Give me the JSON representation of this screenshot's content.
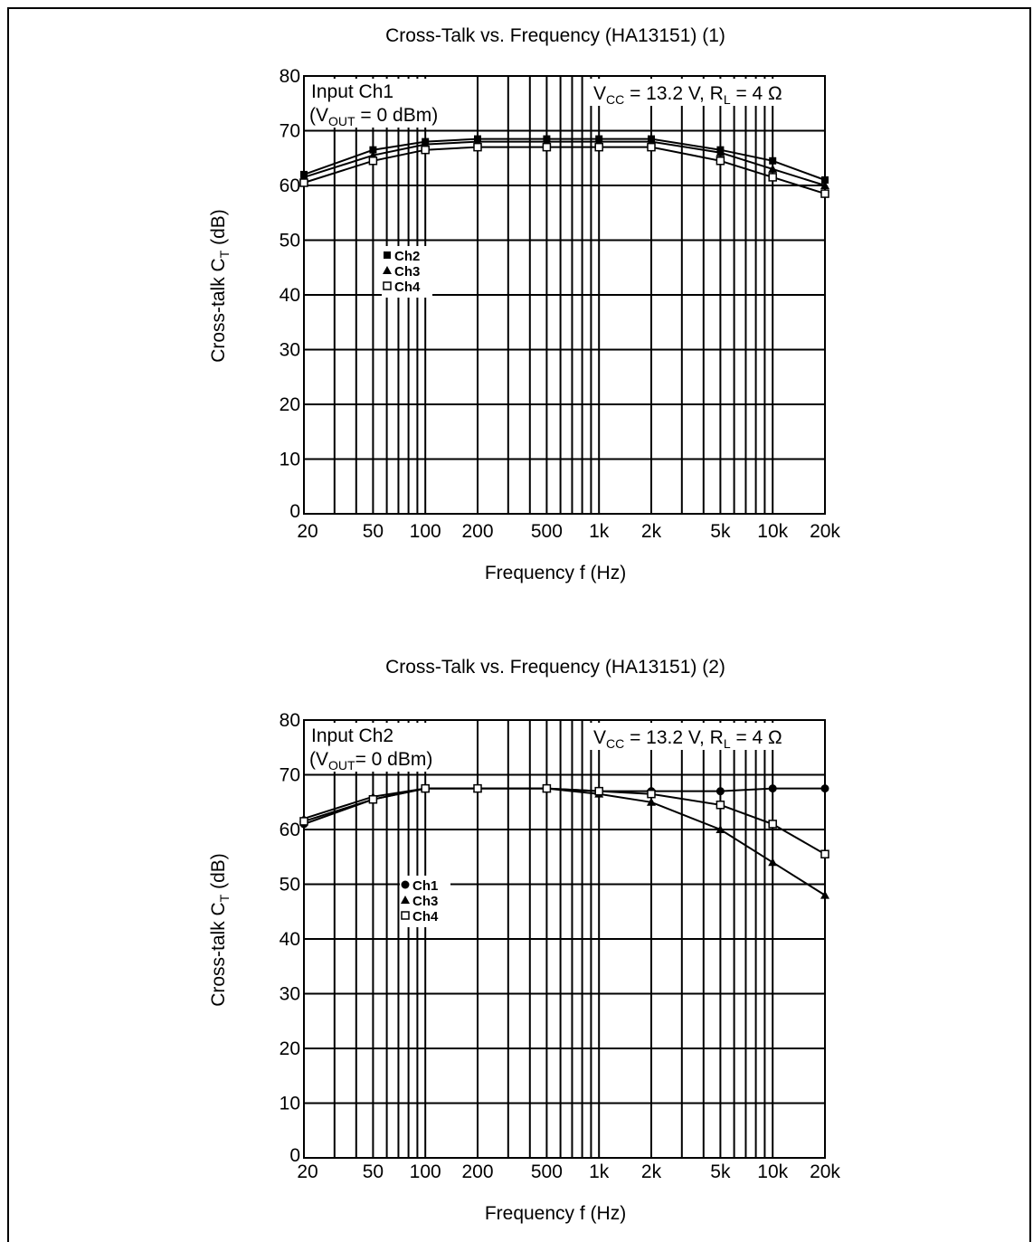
{
  "chart_data": [
    {
      "type": "line",
      "title": "Cross-Talk vs. Frequency (HA13151) (1)",
      "xlabel": "Frequency f (Hz)",
      "ylabel": "Cross-talk CT (dB)",
      "x_scale": "log",
      "xlim": [
        20,
        20000
      ],
      "ylim": [
        0,
        80
      ],
      "x_ticks": [
        20,
        50,
        100,
        200,
        500,
        1000,
        2000,
        5000,
        10000,
        20000
      ],
      "x_tick_labels": [
        "20",
        "50",
        "100",
        "200",
        "500",
        "1k",
        "2k",
        "5k",
        "10k",
        "20k"
      ],
      "y_ticks": [
        0,
        10,
        20,
        30,
        40,
        50,
        60,
        70,
        80
      ],
      "y_tick_labels": [
        "0",
        "10",
        "20",
        "30",
        "40",
        "50",
        "60",
        "70",
        "80"
      ],
      "grid": true,
      "annotations": {
        "input_line1": "Input Ch1",
        "input_line2": "(V",
        "input_sub": "OUT",
        "input_line2_rest": " = 0 dBm)",
        "cond_v": "V",
        "cond_v_sub": "CC",
        "cond_mid": " = 13.2 V, R",
        "cond_r_sub": "L",
        "cond_end": " = 4 Ω"
      },
      "legend_position": "left-middle",
      "x": [
        20,
        50,
        100,
        200,
        500,
        1000,
        2000,
        5000,
        10000,
        20000
      ],
      "series": [
        {
          "name": "Ch2",
          "marker": "filled-square",
          "values": [
            62,
            66.5,
            68,
            68.5,
            68.5,
            68.5,
            68.5,
            66.5,
            64.5,
            61
          ]
        },
        {
          "name": "Ch3",
          "marker": "triangle",
          "values": [
            61.5,
            65.5,
            67.5,
            68,
            68,
            68,
            68,
            66,
            63,
            60
          ]
        },
        {
          "name": "Ch4",
          "marker": "open-square",
          "values": [
            60.5,
            64.5,
            66.5,
            67,
            67,
            67,
            67,
            64.5,
            61.5,
            58.5
          ]
        }
      ]
    },
    {
      "type": "line",
      "title": "Cross-Talk vs. Frequency (HA13151) (2)",
      "xlabel": "Frequency f (Hz)",
      "ylabel": "Cross-talk CT (dB)",
      "x_scale": "log",
      "xlim": [
        20,
        20000
      ],
      "ylim": [
        0,
        80
      ],
      "x_ticks": [
        20,
        50,
        100,
        200,
        500,
        1000,
        2000,
        5000,
        10000,
        20000
      ],
      "x_tick_labels": [
        "20",
        "50",
        "100",
        "200",
        "500",
        "1k",
        "2k",
        "5k",
        "10k",
        "20k"
      ],
      "y_ticks": [
        0,
        10,
        20,
        30,
        40,
        50,
        60,
        70,
        80
      ],
      "y_tick_labels": [
        "0",
        "10",
        "20",
        "30",
        "40",
        "50",
        "60",
        "70",
        "80"
      ],
      "grid": true,
      "annotations": {
        "input_line1": "Input Ch2",
        "input_line2": "(V",
        "input_sub": "OUT",
        "input_line2_rest": "= 0 dBm)",
        "cond_v": "V",
        "cond_v_sub": "CC",
        "cond_mid": " = 13.2 V, R",
        "cond_r_sub": "L",
        "cond_end": " = 4 Ω"
      },
      "legend_position": "left-middle",
      "x": [
        20,
        50,
        100,
        200,
        500,
        1000,
        2000,
        5000,
        10000,
        20000
      ],
      "series": [
        {
          "name": "Ch1",
          "marker": "filled-circle",
          "values": [
            61,
            65.5,
            67.5,
            67.5,
            67.5,
            67,
            67,
            67,
            67.5,
            67.5
          ]
        },
        {
          "name": "Ch3",
          "marker": "triangle",
          "values": [
            62,
            66,
            67.5,
            67.5,
            67.5,
            66.5,
            65,
            60,
            54,
            48
          ]
        },
        {
          "name": "Ch4",
          "marker": "open-square",
          "values": [
            61.5,
            65.5,
            67.5,
            67.5,
            67.5,
            67,
            66.5,
            64.5,
            61,
            55.5
          ]
        }
      ]
    }
  ]
}
